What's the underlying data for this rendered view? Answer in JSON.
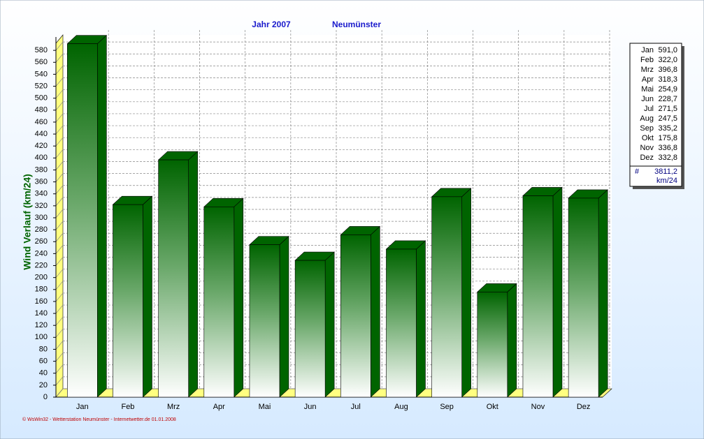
{
  "chart_data": {
    "type": "bar",
    "title": "Jahr  2007",
    "subtitle": "Neumünster",
    "y_label": "Wind Verlauf  (km/24)",
    "categories": [
      "Jan",
      "Feb",
      "Mrz",
      "Apr",
      "Mai",
      "Jun",
      "Jul",
      "Aug",
      "Sep",
      "Okt",
      "Nov",
      "Dez"
    ],
    "values": [
      591.0,
      322.0,
      396.8,
      318.3,
      254.9,
      228.7,
      271.5,
      247.5,
      335.2,
      175.8,
      336.8,
      332.8
    ],
    "value_labels": [
      "591,0",
      "322,0",
      "396,8",
      "318,3",
      "254,9",
      "228,7",
      "271,5",
      "247,5",
      "335,2",
      "175,8",
      "336,8",
      "332,8"
    ],
    "color": "#006400",
    "ylim": [
      0,
      600
    ],
    "yticks": [
      0,
      20,
      40,
      60,
      80,
      100,
      120,
      140,
      160,
      180,
      200,
      220,
      240,
      260,
      280,
      300,
      320,
      340,
      360,
      380,
      400,
      420,
      440,
      460,
      480,
      500,
      520,
      540,
      560,
      580
    ],
    "grid": true,
    "legend_total_symbol": "#",
    "legend_total": "3811,2",
    "legend_unit": "km/24",
    "footer": "© WsWin32 - Wetterstation Neumünster - Internetwetter.de  01.01.2008"
  }
}
